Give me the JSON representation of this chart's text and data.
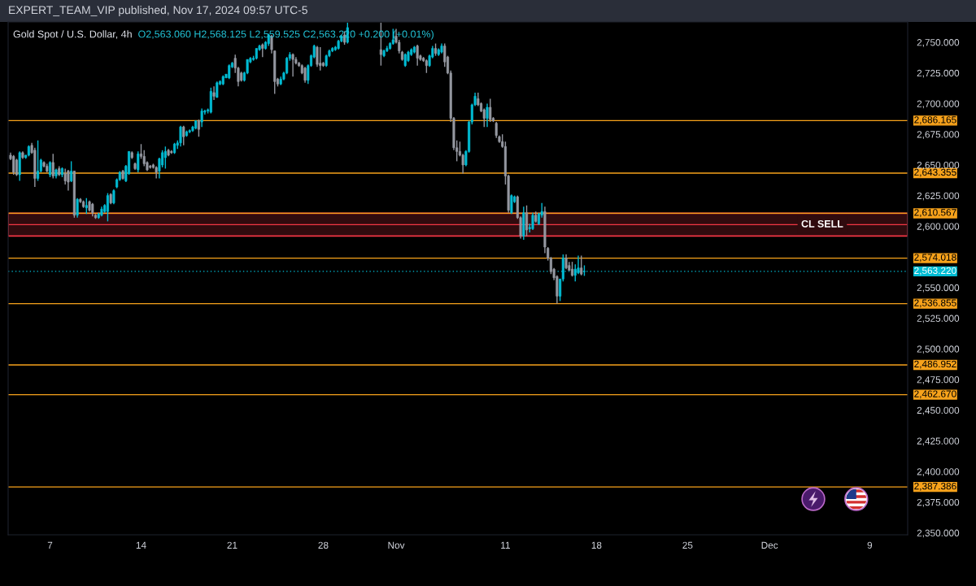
{
  "chart_data": {
    "type": "candlestick",
    "title": "Gold Spot / U.S. Dollar, 4h",
    "subtitle": "O2,563.060 H2,568.125 L2,559.525 C2,563.220 +0.200 (+0.01%)",
    "annotations": [
      "EXPERT_TEAM_VIP published, Nov 17, 2024 09:57 UTC-5"
    ],
    "categories": [
      null,
      null,
      null,
      null,
      null,
      null,
      null,
      null,
      null,
      null,
      null,
      null,
      null,
      "7",
      null,
      null,
      null,
      null,
      null,
      null,
      null,
      null,
      null,
      null,
      null,
      null,
      null,
      null,
      null,
      null,
      null,
      null,
      null,
      null,
      null,
      null,
      null,
      null,
      null,
      null,
      null,
      null,
      null,
      "14",
      null,
      null,
      null,
      null,
      null,
      null,
      null,
      null,
      null,
      null,
      null,
      null,
      null,
      null,
      null,
      null,
      null,
      null,
      null,
      null,
      null,
      null,
      null,
      null,
      null,
      null,
      null,
      null,
      null,
      "21",
      null,
      null,
      null,
      null,
      null,
      null,
      null,
      null,
      null,
      null,
      null,
      null,
      null,
      null,
      null,
      null,
      null,
      null,
      null,
      null,
      null,
      null,
      null,
      null,
      null,
      null,
      null,
      null,
      null,
      "28",
      null,
      null,
      null,
      null,
      null,
      null,
      null,
      null,
      null,
      null,
      null,
      null,
      null,
      null,
      null,
      null,
      null,
      null,
      null,
      null,
      null,
      null,
      null,
      "Nov",
      null,
      null,
      null,
      null,
      null,
      null,
      null,
      null,
      null,
      null,
      null,
      null,
      null,
      null,
      null,
      null,
      null,
      null,
      null,
      null,
      null,
      null,
      null,
      null,
      null,
      null,
      null,
      null,
      null,
      null,
      null,
      null,
      null,
      null,
      null,
      "11",
      null,
      null,
      null,
      null,
      null,
      null,
      null,
      null,
      null,
      null,
      null,
      null,
      null,
      null,
      null,
      null,
      null,
      null,
      null,
      null,
      null,
      null,
      null,
      null,
      null,
      null,
      null,
      null,
      null,
      "18",
      null,
      null,
      null,
      null,
      null,
      null,
      null,
      null,
      null,
      null,
      null,
      null,
      null,
      null,
      null,
      null,
      null,
      null,
      null,
      null,
      null,
      null,
      null,
      null,
      null,
      null,
      null,
      null,
      null,
      "25",
      null,
      null,
      null,
      null,
      null,
      null,
      null,
      null,
      null,
      null,
      null,
      null,
      null,
      null,
      null,
      null,
      null,
      null,
      null,
      null,
      null,
      null,
      null,
      null,
      null,
      null,
      "Dec",
      null,
      null,
      null,
      null,
      null,
      null,
      null,
      null,
      null,
      null,
      null,
      null,
      null,
      null,
      null,
      null,
      null,
      null,
      null,
      null,
      null,
      null,
      null,
      null,
      null,
      null,
      null,
      null,
      null,
      null,
      null,
      null,
      "9",
      null,
      null,
      null,
      null,
      null,
      null,
      null,
      null,
      null,
      null,
      null,
      null
    ],
    "series": [
      {
        "color": "#00bcd4",
        "ohlc": [
          null,
          null,
          null,
          [
            2642,
            2661,
            2637,
            2660
          ],
          null,
          [
            2656,
            2658,
            2655,
            2658
          ],
          [
            2658,
            2666,
            2657,
            2665
          ],
          null,
          null,
          [
            2639,
            2670,
            2637,
            2645
          ],
          [
            2645,
            2655,
            2644,
            2654
          ],
          null,
          null,
          [
            2642,
            2653,
            2640,
            2652
          ],
          null,
          [
            2641,
            2647,
            2639,
            2646
          ],
          null,
          [
            2642,
            2648,
            2640,
            2647
          ],
          null,
          null,
          [
            2637,
            2653,
            2636,
            2645
          ],
          null,
          [
            2609,
            2623,
            2607,
            2622
          ],
          null,
          null,
          [
            2615,
            2623,
            2610,
            2617
          ],
          null,
          null,
          null,
          [
            2607,
            2611,
            2606,
            2610
          ],
          [
            2609,
            2616,
            2608,
            2614
          ],
          [
            2612,
            2618,
            2611,
            2617
          ],
          [
            2612,
            2627,
            2604,
            2625
          ],
          null,
          [
            2619,
            2630,
            2618,
            2629
          ],
          [
            2632,
            2639,
            2631,
            2638
          ],
          [
            2638,
            2645,
            2637,
            2644
          ],
          null,
          [
            2637,
            2650,
            2636,
            2649
          ],
          [
            2643,
            2661,
            2642,
            2661
          ],
          null,
          null,
          [
            2646,
            2661,
            2644,
            2659
          ],
          null,
          null,
          null,
          null,
          null,
          null,
          [
            2645,
            2656,
            2639,
            2655
          ],
          [
            2650,
            2662,
            2648,
            2660
          ],
          [
            2656,
            2665,
            2647,
            2661
          ],
          null,
          null,
          [
            2660,
            2668,
            2659,
            2667
          ],
          [
            2666,
            2670,
            2663,
            2668
          ],
          [
            2668,
            2682,
            2665,
            2681
          ],
          null,
          [
            2674,
            2678,
            2673,
            2677
          ],
          [
            2677,
            2679,
            2676,
            2678
          ],
          [
            2678,
            2682,
            2677,
            2681
          ],
          [
            2680,
            2686,
            2679,
            2686
          ],
          null,
          [
            2685,
            2696,
            2681,
            2694
          ],
          [
            2693,
            2695,
            2691,
            2694
          ],
          [
            2694,
            2696,
            2692,
            2695
          ],
          [
            2693,
            2713,
            2692,
            2710
          ],
          null,
          [
            2705,
            2718,
            2705,
            2717
          ],
          [
            2716,
            2719,
            2715,
            2718
          ],
          [
            2716,
            2723,
            2715,
            2722
          ],
          [
            2721,
            2724,
            2721,
            2724
          ],
          [
            2721,
            2732,
            2720,
            2731
          ],
          [
            2730,
            2734,
            2729,
            2733
          ],
          null,
          null,
          null,
          [
            2719,
            2726,
            2718,
            2725
          ],
          [
            2725,
            2736,
            2724,
            2736
          ],
          [
            2734,
            2738,
            2733,
            2737
          ],
          [
            2736,
            2739,
            2735,
            2737
          ],
          [
            2737,
            2745,
            2736,
            2745
          ],
          [
            2744,
            2748,
            2743,
            2747
          ],
          null,
          [
            2745,
            2751,
            2744,
            2750
          ],
          [
            2749,
            2757,
            2747,
            2756
          ],
          null,
          null,
          null,
          [
            2716,
            2722,
            2715,
            2720
          ],
          [
            2720,
            2726,
            2719,
            2725
          ],
          [
            2725,
            2738,
            2724,
            2737
          ],
          [
            2737,
            2742,
            2735,
            2740
          ],
          null,
          null,
          null,
          null,
          null,
          [
            2719,
            2732,
            2716,
            2731
          ],
          [
            2731,
            2740,
            2730,
            2739
          ],
          [
            2738,
            2748,
            2737,
            2747
          ],
          null,
          null,
          null,
          [
            2731,
            2740,
            2730,
            2739
          ],
          [
            2739,
            2744,
            2738,
            2743
          ],
          [
            2743,
            2746,
            2742,
            2745
          ],
          [
            2744,
            2747,
            2743,
            2746
          ],
          [
            2745,
            2752,
            2744,
            2751
          ],
          [
            2751,
            2756,
            2750,
            2755
          ],
          null,
          [
            2750,
            2766,
            2749,
            2762
          ],
          null,
          null,
          null,
          null,
          null,
          null,
          null,
          null,
          null,
          null,
          null,
          [
            2739,
            2744,
            2738,
            2743
          ],
          [
            2743,
            2747,
            2742,
            2745
          ],
          [
            2745,
            2750,
            2744,
            2749
          ],
          [
            2749,
            2761,
            2748,
            2752
          ],
          null,
          null,
          null,
          [
            2731,
            2741,
            2730,
            2740
          ],
          [
            2735,
            2743,
            2734,
            2742
          ],
          [
            2740,
            2745,
            2739,
            2744
          ],
          [
            2742,
            2747,
            2741,
            2746
          ],
          null,
          null,
          null,
          null,
          [
            2731,
            2740,
            2730,
            2739
          ],
          [
            2738,
            2747,
            2737,
            2745
          ],
          null,
          [
            2740,
            2745,
            2739,
            2744
          ],
          [
            2742,
            2749,
            2741,
            2747
          ],
          null,
          null,
          null,
          null,
          null,
          null,
          null,
          [
            2650,
            2662,
            2649,
            2661
          ],
          [
            2661,
            2686,
            2660,
            2685
          ],
          [
            2685,
            2700,
            2683,
            2699
          ],
          [
            2699,
            2709,
            2698,
            2706
          ],
          null,
          null,
          null,
          [
            2688,
            2700,
            2681,
            2697
          ],
          null,
          null,
          null,
          null,
          null,
          null,
          null,
          [
            2611,
            2626,
            2610,
            2625
          ],
          [
            2620,
            2625,
            2619,
            2624
          ],
          null,
          null,
          [
            2592,
            2616,
            2589,
            2611
          ],
          null,
          [
            2598,
            2602,
            2595,
            2599
          ],
          [
            2598,
            2611,
            2597,
            2609
          ],
          null,
          [
            2602,
            2611,
            2601,
            2610
          ],
          [
            2609,
            2619,
            2607,
            2612
          ],
          null,
          null,
          null,
          null,
          null,
          [
            2543,
            2557,
            2539,
            2557
          ],
          [
            2557,
            2577,
            2555,
            2574
          ],
          null,
          null,
          null,
          [
            2560,
            2569,
            2555,
            2565
          ],
          [
            2562,
            2576,
            2561,
            2566
          ],
          null,
          [
            2563.06,
            2568.125,
            2559.525,
            2563.22
          ],
          null,
          null,
          null,
          null,
          null,
          null,
          null,
          null,
          null,
          null,
          null,
          null,
          null,
          null,
          null,
          null,
          null,
          null,
          null,
          null,
          null,
          null,
          null,
          null,
          null,
          null,
          null,
          null,
          null,
          null,
          null,
          null,
          null,
          null,
          null,
          null,
          null,
          null,
          null,
          null,
          null,
          null,
          null,
          null,
          null,
          null,
          null,
          null,
          null,
          null,
          null,
          null,
          null,
          null,
          null,
          null,
          null,
          null,
          null,
          null,
          null,
          null,
          null,
          null,
          null,
          null,
          null,
          null,
          null,
          null,
          null,
          null,
          null,
          null,
          null,
          null,
          null,
          null,
          null,
          null,
          null,
          null,
          null,
          null,
          null,
          null,
          null,
          null,
          null,
          null,
          null,
          null,
          null,
          null,
          null,
          null,
          null,
          null,
          null,
          null,
          null,
          null,
          null,
          null,
          null,
          null
        ]
      },
      {
        "color": "#9598a1",
        "ohlc": [
          [
            2658,
            2660,
            2654,
            2655
          ],
          [
            2657,
            2658,
            2642,
            2644
          ],
          [
            2654,
            2655,
            2641,
            2642
          ],
          null,
          [
            2660,
            2661,
            2655,
            2656
          ],
          null,
          null,
          [
            2666,
            2668,
            2659,
            2660
          ],
          [
            2662,
            2664,
            2632,
            2639
          ],
          null,
          null,
          [
            2652,
            2653,
            2648,
            2649
          ],
          [
            2649,
            2651,
            2644,
            2645
          ],
          null,
          [
            2652,
            2659,
            2639,
            2641
          ],
          null,
          [
            2647,
            2649,
            2641,
            2642
          ],
          null,
          [
            2643,
            2647,
            2634,
            2637
          ],
          [
            2645,
            2646,
            2629,
            2636
          ],
          null,
          [
            2645,
            2645,
            2607,
            2609
          ],
          null,
          [
            2622,
            2623,
            2619,
            2620
          ],
          [
            2620,
            2621,
            2615,
            2616
          ],
          null,
          [
            2620,
            2621,
            2612,
            2613
          ],
          [
            2618,
            2619,
            2608,
            2611
          ],
          [
            2609,
            2610,
            2606,
            2607
          ],
          null,
          null,
          null,
          null,
          [
            2626,
            2627,
            2618,
            2619
          ],
          null,
          null,
          null,
          [
            2645,
            2646,
            2638,
            2639
          ],
          null,
          null,
          [
            2660,
            2661,
            2655,
            2656
          ],
          [
            2651,
            2652,
            2646,
            2647
          ],
          null,
          [
            2659,
            2667,
            2655,
            2657
          ],
          [
            2657,
            2662,
            2649,
            2651
          ],
          [
            2652,
            2653,
            2645,
            2646
          ],
          [
            2649,
            2650,
            2647,
            2648
          ],
          [
            2650,
            2651,
            2647,
            2648
          ],
          [
            2648,
            2649,
            2639,
            2644
          ],
          null,
          null,
          null,
          [
            2662,
            2663,
            2657,
            2658
          ],
          [
            2661,
            2662,
            2659,
            2660
          ],
          null,
          null,
          null,
          [
            2681,
            2682,
            2666,
            2673
          ],
          null,
          null,
          null,
          null,
          [
            2686,
            2687,
            2673,
            2679
          ],
          null,
          null,
          null,
          null,
          [
            2709,
            2714,
            2703,
            2706
          ],
          null,
          null,
          null,
          null,
          null,
          null,
          [
            2737,
            2740,
            2725,
            2729
          ],
          [
            2729,
            2730,
            2714,
            2718
          ],
          [
            2725,
            2726,
            2718,
            2719
          ],
          null,
          null,
          null,
          null,
          null,
          null,
          [
            2748,
            2749,
            2738,
            2745
          ],
          null,
          null,
          [
            2755,
            2756,
            2741,
            2744
          ],
          [
            2743,
            2743,
            2708,
            2718
          ],
          [
            2720,
            2721,
            2714,
            2716
          ],
          null,
          null,
          null,
          null,
          [
            2740,
            2741,
            2722,
            2736
          ],
          [
            2736,
            2738,
            2732,
            2733
          ],
          [
            2733,
            2734,
            2730,
            2731
          ],
          [
            2731,
            2732,
            2724,
            2725
          ],
          [
            2729,
            2730,
            2717,
            2719
          ],
          null,
          null,
          null,
          [
            2746,
            2747,
            2730,
            2732
          ],
          [
            2733,
            2746,
            2727,
            2731
          ],
          [
            2733,
            2734,
            2730,
            2731
          ],
          null,
          null,
          null,
          null,
          null,
          null,
          [
            2756,
            2759,
            2748,
            2750
          ],
          null,
          null,
          null,
          null,
          null,
          null,
          null,
          null,
          null,
          null,
          null,
          [
            2744,
            2766,
            2731,
            2740
          ],
          null,
          null,
          null,
          null,
          [
            2755,
            2761,
            2749,
            2750
          ],
          [
            2750,
            2752,
            2741,
            2743
          ],
          [
            2742,
            2743,
            2735,
            2736
          ],
          null,
          null,
          null,
          null,
          [
            2747,
            2748,
            2731,
            2737
          ],
          [
            2739,
            2740,
            2735,
            2736
          ],
          [
            2737,
            2738,
            2734,
            2735
          ],
          [
            2735,
            2736,
            2725,
            2731
          ],
          null,
          null,
          [
            2745,
            2749,
            2739,
            2741
          ],
          null,
          null,
          [
            2747,
            2749,
            2730,
            2734
          ],
          [
            2738,
            2739,
            2724,
            2725
          ],
          [
            2725,
            2727,
            2685,
            2688
          ],
          [
            2688,
            2689,
            2662,
            2664
          ],
          [
            2664,
            2670,
            2653,
            2661
          ],
          [
            2661,
            2669,
            2657,
            2658
          ],
          [
            2658,
            2659,
            2643,
            2650
          ],
          null,
          null,
          null,
          null,
          [
            2704,
            2709,
            2698,
            2699
          ],
          [
            2700,
            2701,
            2693,
            2694
          ],
          [
            2695,
            2696,
            2681,
            2688
          ],
          null,
          [
            2697,
            2704,
            2685,
            2687
          ],
          [
            2688,
            2689,
            2685,
            2686
          ],
          [
            2684,
            2685,
            2672,
            2674
          ],
          [
            2673,
            2674,
            2668,
            2669
          ],
          [
            2669,
            2675,
            2664,
            2665
          ],
          [
            2665,
            2669,
            2634,
            2641
          ],
          [
            2641,
            2642,
            2611,
            2613
          ],
          null,
          null,
          [
            2624,
            2625,
            2606,
            2607
          ],
          [
            2607,
            2608,
            2590,
            2592
          ],
          null,
          [
            2611,
            2617,
            2592,
            2597
          ],
          null,
          null,
          [
            2609,
            2612,
            2603,
            2604
          ],
          null,
          null,
          [
            2612,
            2616,
            2578,
            2583
          ],
          [
            2582,
            2583,
            2572,
            2574
          ],
          [
            2574,
            2575,
            2561,
            2563
          ],
          [
            2565,
            2566,
            2556,
            2558
          ],
          [
            2559,
            2560,
            2537,
            2543
          ],
          null,
          null,
          [
            2574,
            2577,
            2565,
            2566
          ],
          [
            2568,
            2571,
            2564,
            2564
          ],
          [
            2565,
            2571,
            2559,
            2560
          ],
          null,
          null,
          [
            2566,
            2576,
            2560,
            2561
          ],
          null,
          null,
          null,
          null,
          null,
          null,
          null,
          null,
          null,
          null,
          null,
          null,
          null,
          null,
          null,
          null,
          null,
          null,
          null,
          null,
          null,
          null,
          null,
          null,
          null,
          null,
          null,
          null,
          null,
          null,
          null,
          null,
          null,
          null,
          null,
          null,
          null,
          null,
          null,
          null,
          null,
          null,
          null,
          null,
          null,
          null,
          null,
          null,
          null,
          null,
          null,
          null,
          null,
          null,
          null,
          null,
          null,
          null,
          null,
          null,
          null,
          null,
          null,
          null,
          null,
          null,
          null,
          null,
          null,
          null,
          null,
          null,
          null,
          null,
          null,
          null,
          null,
          null,
          null,
          null,
          null,
          null,
          null,
          null,
          null,
          null,
          null,
          null,
          null,
          null,
          null,
          null,
          null,
          null,
          null,
          null,
          null,
          null,
          null,
          null,
          null,
          null,
          null,
          null,
          null,
          null,
          null
        ]
      }
    ],
    "ylim": [
      2348.4,
      2766.6
    ],
    "yticks": [
      {
        "value": 2350,
        "label": "2,350.000"
      },
      {
        "value": 2375,
        "label": "2,375.000"
      },
      {
        "value": 2400,
        "label": "2,400.000"
      },
      {
        "value": 2425,
        "label": "2,425.000"
      },
      {
        "value": 2450,
        "label": "2,450.000"
      },
      {
        "value": 2475,
        "label": "2,475.000"
      },
      {
        "value": 2500,
        "label": "2,500.000"
      },
      {
        "value": 2525,
        "label": "2,525.000"
      },
      {
        "value": 2550,
        "label": "2,550.000"
      },
      {
        "value": 2600,
        "label": "2,600.000"
      },
      {
        "value": 2625,
        "label": "2,625.000"
      },
      {
        "value": 2650,
        "label": "2,650.000"
      },
      {
        "value": 2675,
        "label": "2,675.000"
      },
      {
        "value": 2700,
        "label": "2,700.000"
      },
      {
        "value": 2725,
        "label": "2,725.000"
      },
      {
        "value": 2750,
        "label": "2,750.000"
      }
    ],
    "ref_lines": [
      {
        "axis": "y",
        "value": 2686.165,
        "label": "2,686.165",
        "color": "#f7a21b"
      },
      {
        "axis": "y",
        "value": 2643.355,
        "label": "2,643.355",
        "color": "#f7a21b"
      },
      {
        "axis": "y",
        "value": 2610.567,
        "label": "2,610.567",
        "color": "#f7a21b"
      },
      {
        "axis": "y",
        "value": 2601.3,
        "color": "#f23645"
      },
      {
        "axis": "y",
        "value": 2574.018,
        "label": "2,574.018",
        "color": "#f7a21b"
      },
      {
        "axis": "y",
        "value": 2563.22,
        "label": "2,563.220",
        "color": "#00bcd4",
        "line_style": "dotted"
      },
      {
        "axis": "y",
        "value": 2536.855,
        "label": "2,536.855",
        "color": "#f7a21b"
      },
      {
        "axis": "y",
        "value": 2486.952,
        "label": "2,486.952",
        "color": "#f7a21b"
      },
      {
        "axis": "y",
        "value": 2462.67,
        "label": "2,462.670",
        "color": "#f7a21b"
      },
      {
        "axis": "y",
        "value": 2387.386,
        "label": "2,387.386",
        "color": "#f7a21b"
      }
    ],
    "bands": [
      {
        "axis": "y",
        "from": 2592,
        "to": 2610.567,
        "label": "CL SELL",
        "color": "#f23645"
      }
    ]
  }
}
